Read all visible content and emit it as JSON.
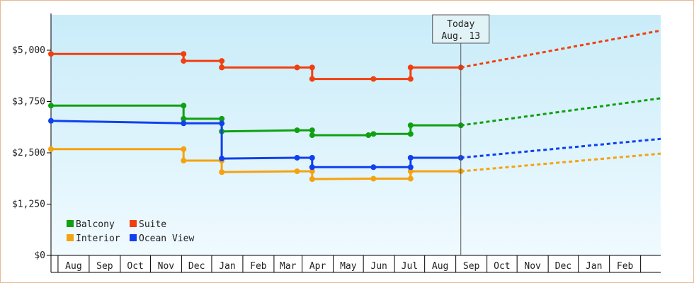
{
  "chart_data": {
    "type": "line",
    "title": "",
    "xlabel": "",
    "ylabel": "",
    "ylim": [
      0,
      6250
    ],
    "y_ticks": [
      {
        "value": 0,
        "label": "$0"
      },
      {
        "value": 1250,
        "label": "$1,250"
      },
      {
        "value": 2500,
        "label": "$2,500"
      },
      {
        "value": 3750,
        "label": "$3,750"
      },
      {
        "value": 5000,
        "label": "$5,000"
      }
    ],
    "x_start": "2022-07-01",
    "x_end": "2023-03-01",
    "month_labels": [
      "Aug",
      "Sep",
      "Oct",
      "Nov",
      "Dec",
      "Jan",
      "Feb",
      "Mar",
      "Apr",
      "May",
      "Jun",
      "Jul",
      "Aug",
      "Sep",
      "Oct",
      "Nov",
      "Dec",
      "Jan",
      "Feb"
    ],
    "month_starts": [
      "2022-07-08",
      "2022-08-08",
      "2022-09-08",
      "2022-10-08",
      "2022-11-08",
      "2022-12-08",
      "2023-01-08",
      "2023-02-08",
      "2023-03-08",
      "2023-04-08",
      "2023-05-08",
      "2023-06-08",
      "2023-07-08",
      "2023-08-08",
      "2023-09-08",
      "2023-10-08",
      "2023-11-08",
      "2023-12-08",
      "2024-01-08",
      "2024-02-08"
    ],
    "today": {
      "line1": "Today",
      "line2": "Aug. 13",
      "date": "2023-08-13"
    },
    "legend": {
      "placement": "bottom-left"
    },
    "grid": false,
    "series": [
      {
        "name": "Balcony",
        "color": "#10a010",
        "points": [
          {
            "x": "2022-07-01",
            "y": 3650
          },
          {
            "x": "2022-11-10",
            "y": 3650
          },
          {
            "x": "2022-11-10",
            "y": 3330
          },
          {
            "x": "2022-12-18",
            "y": 3330
          },
          {
            "x": "2022-12-18",
            "y": 3020
          },
          {
            "x": "2023-03-03",
            "y": 3050
          },
          {
            "x": "2023-03-18",
            "y": 3050
          },
          {
            "x": "2023-03-18",
            "y": 2930
          },
          {
            "x": "2023-05-13",
            "y": 2930
          },
          {
            "x": "2023-05-18",
            "y": 2960
          },
          {
            "x": "2023-06-24",
            "y": 2960
          },
          {
            "x": "2023-06-24",
            "y": 3170
          },
          {
            "x": "2023-08-13",
            "y": 3170
          }
        ],
        "projection": {
          "x": "2024-02-28",
          "y": 3830
        }
      },
      {
        "name": "Suite",
        "color": "#f04010",
        "points": [
          {
            "x": "2022-07-01",
            "y": 4910
          },
          {
            "x": "2022-11-10",
            "y": 4910
          },
          {
            "x": "2022-11-10",
            "y": 4740
          },
          {
            "x": "2022-12-18",
            "y": 4740
          },
          {
            "x": "2022-12-18",
            "y": 4580
          },
          {
            "x": "2023-03-03",
            "y": 4580
          },
          {
            "x": "2023-03-18",
            "y": 4580
          },
          {
            "x": "2023-03-18",
            "y": 4300
          },
          {
            "x": "2023-05-18",
            "y": 4300
          },
          {
            "x": "2023-06-24",
            "y": 4300
          },
          {
            "x": "2023-06-24",
            "y": 4580
          },
          {
            "x": "2023-08-13",
            "y": 4580
          }
        ],
        "projection": {
          "x": "2024-02-28",
          "y": 5480
        }
      },
      {
        "name": "Interior",
        "color": "#f5a20f",
        "points": [
          {
            "x": "2022-07-01",
            "y": 2590
          },
          {
            "x": "2022-11-10",
            "y": 2590
          },
          {
            "x": "2022-11-10",
            "y": 2310
          },
          {
            "x": "2022-12-18",
            "y": 2310
          },
          {
            "x": "2022-12-18",
            "y": 2030
          },
          {
            "x": "2023-03-03",
            "y": 2050
          },
          {
            "x": "2023-03-18",
            "y": 2050
          },
          {
            "x": "2023-03-18",
            "y": 1860
          },
          {
            "x": "2023-05-18",
            "y": 1870
          },
          {
            "x": "2023-06-24",
            "y": 1870
          },
          {
            "x": "2023-06-24",
            "y": 2050
          },
          {
            "x": "2023-08-13",
            "y": 2050
          }
        ],
        "projection": {
          "x": "2024-02-28",
          "y": 2480
        }
      },
      {
        "name": "Ocean View",
        "color": "#1040f0",
        "points": [
          {
            "x": "2022-07-01",
            "y": 3280
          },
          {
            "x": "2022-11-10",
            "y": 3220
          },
          {
            "x": "2022-12-18",
            "y": 3220
          },
          {
            "x": "2022-12-18",
            "y": 2360
          },
          {
            "x": "2023-03-03",
            "y": 2380
          },
          {
            "x": "2023-03-18",
            "y": 2380
          },
          {
            "x": "2023-03-18",
            "y": 2150
          },
          {
            "x": "2023-05-18",
            "y": 2150
          },
          {
            "x": "2023-06-24",
            "y": 2150
          },
          {
            "x": "2023-06-24",
            "y": 2380
          },
          {
            "x": "2023-08-13",
            "y": 2380
          }
        ],
        "projection": {
          "x": "2024-02-28",
          "y": 2840
        }
      }
    ]
  }
}
